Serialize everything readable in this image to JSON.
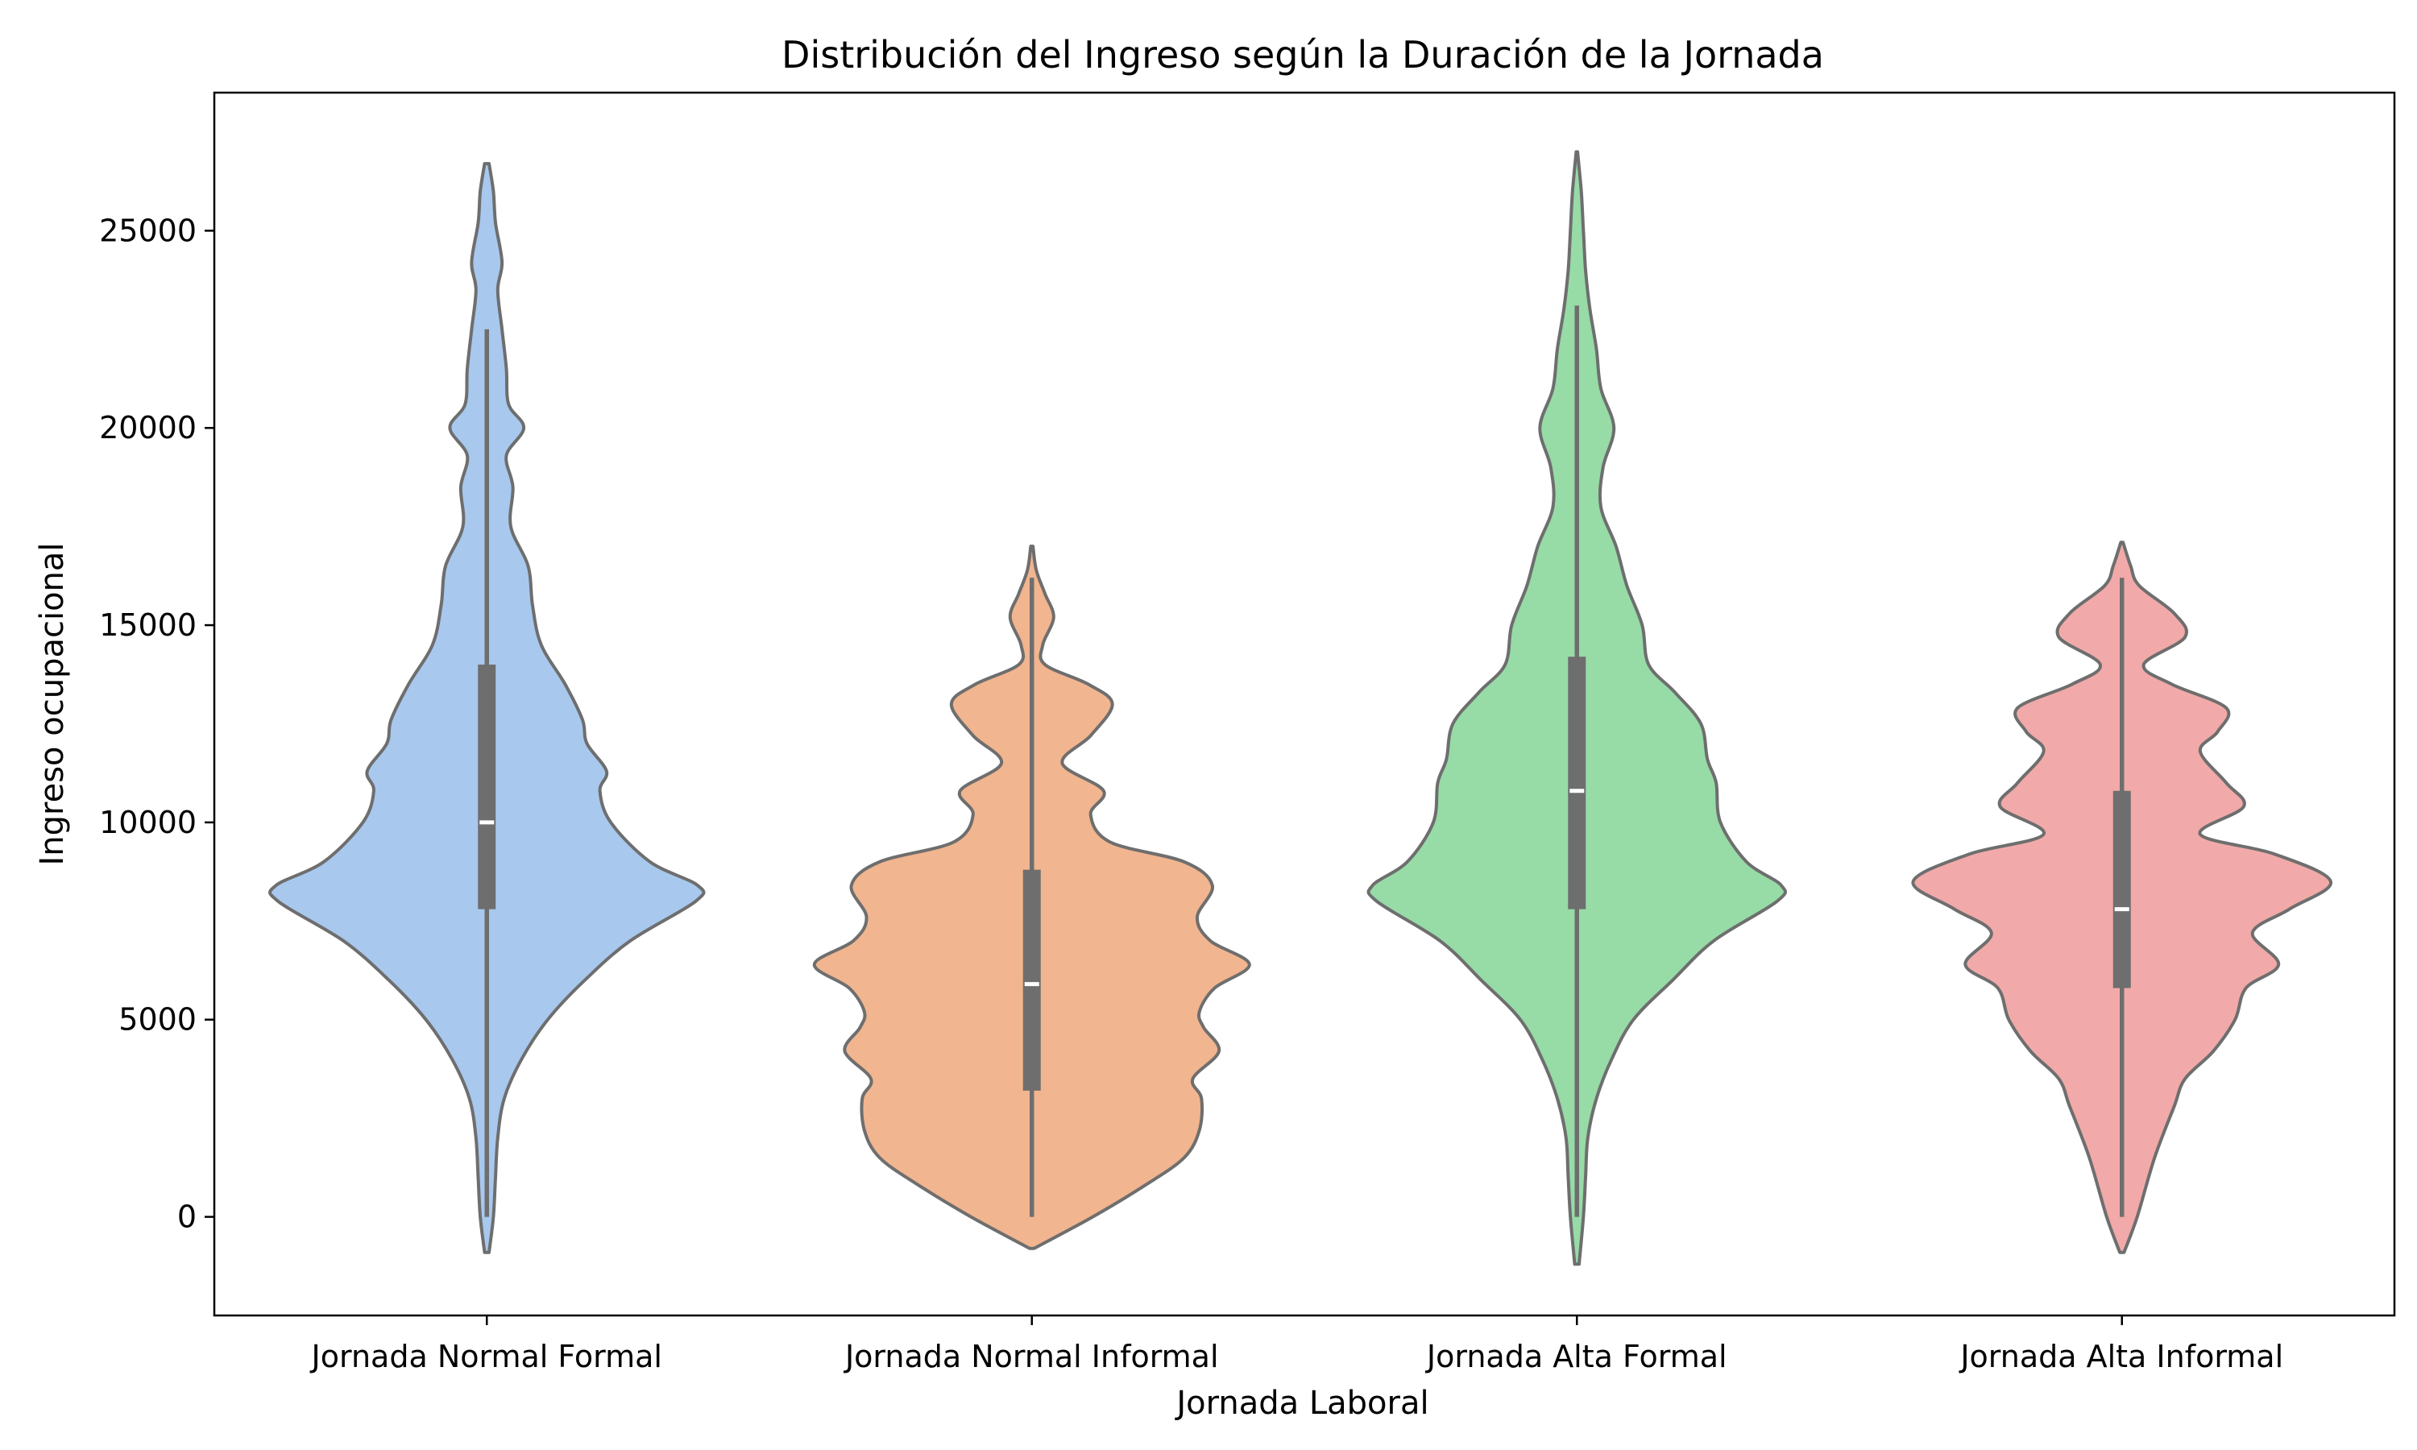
{
  "chart_data": {
    "type": "violin",
    "title": "Distribución del Ingreso según la Duración de la Jornada",
    "xlabel": "Jornada Laboral",
    "ylabel": "Ingreso ocupacional",
    "ylim": [
      -2500,
      28500
    ],
    "yticks": [
      0,
      5000,
      10000,
      15000,
      20000,
      25000
    ],
    "grid": false,
    "categories": [
      "Jornada Normal Formal",
      "Jornada Normal Informal",
      "Jornada Alta Formal",
      "Jornada Alta Informal"
    ],
    "colors": [
      "#a8c8ee",
      "#f1b58f",
      "#97dba7",
      "#f1aaa9"
    ],
    "series": [
      {
        "category": "Jornada Normal Formal",
        "min": 0,
        "q1": 7800,
        "median": 10000,
        "q3": 14000,
        "max": 22500,
        "range": [
          -900,
          26700
        ],
        "density": [
          [
            -900,
            0.01
          ],
          [
            0,
            0.03
          ],
          [
            1000,
            0.04
          ],
          [
            2000,
            0.05
          ],
          [
            3000,
            0.08
          ],
          [
            4000,
            0.16
          ],
          [
            5000,
            0.28
          ],
          [
            6000,
            0.45
          ],
          [
            7000,
            0.66
          ],
          [
            8000,
            0.96
          ],
          [
            8400,
            0.97
          ],
          [
            9000,
            0.75
          ],
          [
            10000,
            0.57
          ],
          [
            10800,
            0.52
          ],
          [
            11300,
            0.55
          ],
          [
            12000,
            0.46
          ],
          [
            12600,
            0.44
          ],
          [
            13500,
            0.36
          ],
          [
            14500,
            0.25
          ],
          [
            15500,
            0.21
          ],
          [
            16500,
            0.19
          ],
          [
            17500,
            0.11
          ],
          [
            18500,
            0.12
          ],
          [
            19300,
            0.09
          ],
          [
            20000,
            0.17
          ],
          [
            20600,
            0.1
          ],
          [
            21500,
            0.09
          ],
          [
            22500,
            0.07
          ],
          [
            23500,
            0.05
          ],
          [
            24200,
            0.07
          ],
          [
            25200,
            0.04
          ],
          [
            26000,
            0.03
          ],
          [
            26700,
            0.01
          ]
        ]
      },
      {
        "category": "Jornada Normal Informal",
        "min": 0,
        "q1": 3200,
        "median": 5900,
        "q3": 8800,
        "max": 16200,
        "range": [
          -800,
          17000
        ],
        "density": [
          [
            -800,
            0.01
          ],
          [
            0,
            0.28
          ],
          [
            800,
            0.52
          ],
          [
            1500,
            0.7
          ],
          [
            2200,
            0.77
          ],
          [
            3000,
            0.78
          ],
          [
            3500,
            0.74
          ],
          [
            4200,
            0.86
          ],
          [
            4800,
            0.79
          ],
          [
            5200,
            0.77
          ],
          [
            5800,
            0.84
          ],
          [
            6400,
            1.0
          ],
          [
            7000,
            0.82
          ],
          [
            7600,
            0.76
          ],
          [
            8400,
            0.83
          ],
          [
            9000,
            0.7
          ],
          [
            9500,
            0.36
          ],
          [
            10200,
            0.27
          ],
          [
            10800,
            0.33
          ],
          [
            11500,
            0.14
          ],
          [
            12200,
            0.27
          ],
          [
            13000,
            0.37
          ],
          [
            13500,
            0.26
          ],
          [
            14000,
            0.06
          ],
          [
            14500,
            0.05
          ],
          [
            15200,
            0.1
          ],
          [
            15800,
            0.06
          ],
          [
            16400,
            0.02
          ],
          [
            17000,
            0.005
          ]
        ]
      },
      {
        "category": "Jornada Alta Formal",
        "min": 0,
        "q1": 7800,
        "median": 10800,
        "q3": 14200,
        "max": 23100,
        "range": [
          -1200,
          27000
        ],
        "density": [
          [
            -1200,
            0.01
          ],
          [
            0,
            0.03
          ],
          [
            1000,
            0.04
          ],
          [
            2000,
            0.05
          ],
          [
            3000,
            0.09
          ],
          [
            4000,
            0.16
          ],
          [
            5000,
            0.26
          ],
          [
            6000,
            0.44
          ],
          [
            7000,
            0.63
          ],
          [
            8000,
            0.92
          ],
          [
            8400,
            0.94
          ],
          [
            9000,
            0.78
          ],
          [
            10000,
            0.66
          ],
          [
            11000,
            0.64
          ],
          [
            11600,
            0.6
          ],
          [
            12500,
            0.57
          ],
          [
            13300,
            0.45
          ],
          [
            14000,
            0.33
          ],
          [
            15000,
            0.3
          ],
          [
            16000,
            0.23
          ],
          [
            17000,
            0.18
          ],
          [
            18000,
            0.11
          ],
          [
            19000,
            0.12
          ],
          [
            20000,
            0.17
          ],
          [
            21000,
            0.11
          ],
          [
            22000,
            0.09
          ],
          [
            23000,
            0.06
          ],
          [
            24000,
            0.04
          ],
          [
            25000,
            0.03
          ],
          [
            26000,
            0.02
          ],
          [
            27000,
            0.003
          ]
        ]
      },
      {
        "category": "Jornada Alta Informal",
        "min": 0,
        "q1": 5800,
        "median": 7800,
        "q3": 10800,
        "max": 16200,
        "range": [
          -900,
          17100
        ],
        "density": [
          [
            -900,
            0.01
          ],
          [
            0,
            0.07
          ],
          [
            1500,
            0.15
          ],
          [
            2800,
            0.24
          ],
          [
            3500,
            0.29
          ],
          [
            4200,
            0.42
          ],
          [
            5000,
            0.52
          ],
          [
            5800,
            0.57
          ],
          [
            6400,
            0.72
          ],
          [
            7200,
            0.6
          ],
          [
            7800,
            0.77
          ],
          [
            8500,
            0.96
          ],
          [
            9200,
            0.7
          ],
          [
            9700,
            0.36
          ],
          [
            10400,
            0.56
          ],
          [
            11000,
            0.48
          ],
          [
            11800,
            0.36
          ],
          [
            12300,
            0.44
          ],
          [
            12900,
            0.48
          ],
          [
            13500,
            0.23
          ],
          [
            14000,
            0.1
          ],
          [
            14700,
            0.29
          ],
          [
            15300,
            0.24
          ],
          [
            16000,
            0.08
          ],
          [
            16500,
            0.04
          ],
          [
            17100,
            0.005
          ]
        ]
      }
    ]
  }
}
